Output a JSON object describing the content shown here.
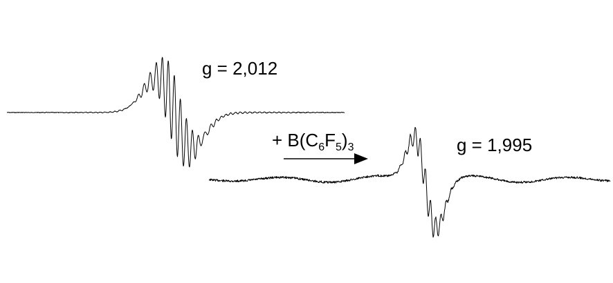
{
  "spectrum_left": {
    "g_label": "g = 2,012"
  },
  "spectrum_right": {
    "g_label": "g = 1,995"
  },
  "reaction": {
    "reagent_prefix": "+ B(C",
    "sub1": "6",
    "mid": "F",
    "sub2": "5",
    "close": ")",
    "sub3": "3",
    "arrow_direction": "right"
  },
  "colors": {
    "trace": "#000000",
    "text": "#000000",
    "background": "#ffffff"
  }
}
